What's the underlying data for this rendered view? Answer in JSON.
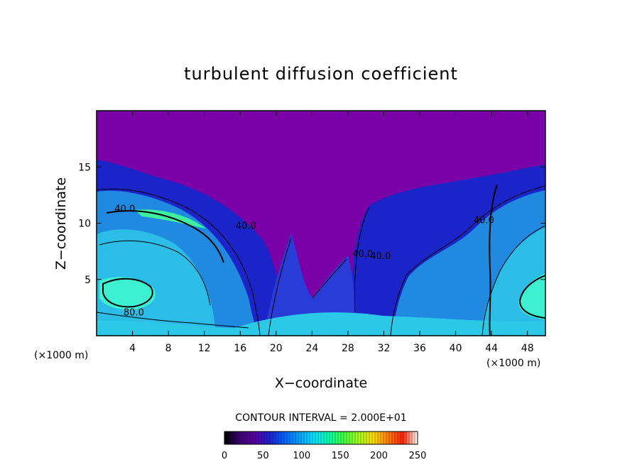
{
  "chart_data": {
    "type": "heatmap",
    "title": "turbulent diffusion coefficient",
    "xlabel": "X−coordinate",
    "ylabel": "Z−coordinate",
    "x_units_left": "(×1000 m)",
    "x_units_right": "(×1000 m)",
    "x_ticks": [
      4,
      8,
      12,
      16,
      20,
      24,
      28,
      32,
      36,
      40,
      44,
      48
    ],
    "y_ticks": [
      5,
      10,
      15
    ],
    "xlim": [
      0,
      50
    ],
    "ylim": [
      0,
      20
    ],
    "contour_labels": [
      {
        "text": "40.0",
        "x": 2.0,
        "z": 11.0
      },
      {
        "text": "40.0",
        "x": 15.5,
        "z": 9.5
      },
      {
        "text": "80.0",
        "x": 3.0,
        "z": 1.8
      },
      {
        "text": "40.0",
        "x": 42.0,
        "z": 10.0
      },
      {
        "text": "40.0",
        "x": 28.5,
        "z": 7.0
      },
      {
        "text": "40.0",
        "x": 30.5,
        "z": 6.8
      }
    ],
    "contour_interval_text": "CONTOUR INTERVAL = 2.000E+01",
    "colorbar": {
      "ticks": [
        0,
        50,
        100,
        150,
        200,
        250
      ],
      "range": [
        0,
        250
      ],
      "colors": [
        "#000000",
        "#3a0070",
        "#5a00a0",
        "#2020d0",
        "#0060ff",
        "#00a0ff",
        "#00e0ff",
        "#00ffb0",
        "#40ff40",
        "#a0ff20",
        "#ffe000",
        "#ff8000",
        "#ff2000",
        "#ffffff"
      ]
    },
    "background_color": "#7a00a8"
  }
}
